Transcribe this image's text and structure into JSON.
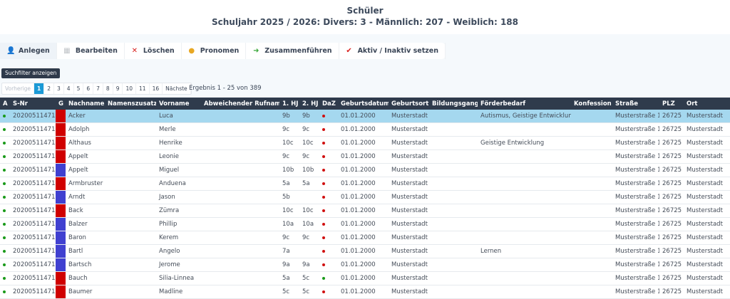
{
  "header": {
    "title": "Schüler",
    "subtitle": "Schuljahr 2025 / 2026: Divers: 3 - Männlich: 207 - Weiblich: 188"
  },
  "toolbar": [
    {
      "label": "Anlegen",
      "icon": "user-add-icon",
      "glyph": "👤",
      "color": "#3a5bd0"
    },
    {
      "label": "Bearbeiten",
      "icon": "edit-icon",
      "glyph": "▦",
      "color": "#c0c4c8"
    },
    {
      "label": "Löschen",
      "icon": "delete-x-icon",
      "glyph": "✕",
      "color": "#d9211e"
    },
    {
      "label": "Pronomen",
      "icon": "pronoun-icon",
      "glyph": "●",
      "color": "#e8a824"
    },
    {
      "label": "Zusammenführen",
      "icon": "merge-arrow-icon",
      "glyph": "➜",
      "color": "#3aa83a"
    },
    {
      "label": "Aktiv / Inaktiv setzen",
      "icon": "checkmark-icon",
      "glyph": "✔",
      "color": "#d9211e"
    }
  ],
  "search_filter_label": "Suchfilter anzeigen",
  "pagination": {
    "prev": "Vorherige",
    "pages": [
      "1",
      "2",
      "3",
      "4",
      "5",
      "6",
      "7",
      "8",
      "9",
      "10",
      "11",
      "16"
    ],
    "current": "1",
    "next": "Nächste",
    "result": "Ergebnis 1 - 25 von 389"
  },
  "colors": {
    "active": "#1a9a1a",
    "daz_no": "#d01010",
    "daz_yes": "#1a9a1a",
    "female": "#d00000",
    "male": "#4040d0",
    "selected": "#a5d8ef"
  },
  "table": {
    "columns": [
      "A",
      "S-Nr",
      "G",
      "Nachname",
      "Namenszusatz",
      "Vorname",
      "Abweichender Rufname",
      "1. HJ",
      "2. HJ",
      "DaZ",
      "Geburtsdatum",
      "Geburtsort",
      "Bildungsgang",
      "Förderbedarf",
      "Konfession",
      "Straße",
      "PLZ",
      "Ort"
    ],
    "rows": [
      {
        "snr": "202005114711",
        "g": "f",
        "nachname": "Acker",
        "zusatz": "",
        "vorname": "Luca",
        "ruf": "",
        "hj1": "9b",
        "hj2": "9b",
        "daz": false,
        "geb": "01.01.2000",
        "ort_geb": "Musterstadt",
        "bild": "",
        "foerder": "Autismus, Geistige Entwicklung",
        "konf": "",
        "strasse": "Musterstraße 1",
        "plz": "26725",
        "ort": "Musterstadt",
        "selected": true
      },
      {
        "snr": "202005114711",
        "g": "f",
        "nachname": "Adolph",
        "zusatz": "",
        "vorname": "Merle",
        "ruf": "",
        "hj1": "9c",
        "hj2": "9c",
        "daz": false,
        "geb": "01.01.2000",
        "ort_geb": "Musterstadt",
        "bild": "",
        "foerder": "",
        "konf": "",
        "strasse": "Musterstraße 1",
        "plz": "26725",
        "ort": "Musterstadt"
      },
      {
        "snr": "202005114711",
        "g": "f",
        "nachname": "Althaus",
        "zusatz": "",
        "vorname": "Henrike",
        "ruf": "",
        "hj1": "10c",
        "hj2": "10c",
        "daz": false,
        "geb": "01.01.2000",
        "ort_geb": "Musterstadt",
        "bild": "",
        "foerder": "Geistige Entwicklung",
        "konf": "",
        "strasse": "Musterstraße 1",
        "plz": "26725",
        "ort": "Musterstadt"
      },
      {
        "snr": "202005114711",
        "g": "f",
        "nachname": "Appelt",
        "zusatz": "",
        "vorname": "Leonie",
        "ruf": "",
        "hj1": "9c",
        "hj2": "9c",
        "daz": false,
        "geb": "01.01.2000",
        "ort_geb": "Musterstadt",
        "bild": "",
        "foerder": "",
        "konf": "",
        "strasse": "Musterstraße 1",
        "plz": "26725",
        "ort": "Musterstadt"
      },
      {
        "snr": "202005114711",
        "g": "m",
        "nachname": "Appelt",
        "zusatz": "",
        "vorname": "Miguel",
        "ruf": "",
        "hj1": "10b",
        "hj2": "10b",
        "daz": false,
        "geb": "01.01.2000",
        "ort_geb": "Musterstadt",
        "bild": "",
        "foerder": "",
        "konf": "",
        "strasse": "Musterstraße 1",
        "plz": "26725",
        "ort": "Musterstadt"
      },
      {
        "snr": "202005114711",
        "g": "f",
        "nachname": "Armbruster",
        "zusatz": "",
        "vorname": "Anduena",
        "ruf": "",
        "hj1": "5a",
        "hj2": "5a",
        "daz": false,
        "geb": "01.01.2000",
        "ort_geb": "Musterstadt",
        "bild": "",
        "foerder": "",
        "konf": "",
        "strasse": "Musterstraße 1",
        "plz": "26725",
        "ort": "Musterstadt"
      },
      {
        "snr": "202005114711",
        "g": "m",
        "nachname": "Arndt",
        "zusatz": "",
        "vorname": "Jason",
        "ruf": "",
        "hj1": "5b",
        "hj2": "",
        "daz": false,
        "geb": "01.01.2000",
        "ort_geb": "Musterstadt",
        "bild": "",
        "foerder": "",
        "konf": "",
        "strasse": "Musterstraße 1",
        "plz": "26725",
        "ort": "Musterstadt"
      },
      {
        "snr": "202005114711",
        "g": "f",
        "nachname": "Back",
        "zusatz": "",
        "vorname": "Zümra",
        "ruf": "",
        "hj1": "10c",
        "hj2": "10c",
        "daz": false,
        "geb": "01.01.2000",
        "ort_geb": "Musterstadt",
        "bild": "",
        "foerder": "",
        "konf": "",
        "strasse": "Musterstraße 1",
        "plz": "26725",
        "ort": "Musterstadt"
      },
      {
        "snr": "202005114711",
        "g": "m",
        "nachname": "Balzer",
        "zusatz": "",
        "vorname": "Phillip",
        "ruf": "",
        "hj1": "10a",
        "hj2": "10a",
        "daz": false,
        "geb": "01.01.2000",
        "ort_geb": "Musterstadt",
        "bild": "",
        "foerder": "",
        "konf": "",
        "strasse": "Musterstraße 1",
        "plz": "26725",
        "ort": "Musterstadt"
      },
      {
        "snr": "202005114711",
        "g": "m",
        "nachname": "Baron",
        "zusatz": "",
        "vorname": "Kerem",
        "ruf": "",
        "hj1": "9c",
        "hj2": "9c",
        "daz": false,
        "geb": "01.01.2000",
        "ort_geb": "Musterstadt",
        "bild": "",
        "foerder": "",
        "konf": "",
        "strasse": "Musterstraße 1",
        "plz": "26725",
        "ort": "Musterstadt"
      },
      {
        "snr": "202005114711",
        "g": "m",
        "nachname": "Bartl",
        "zusatz": "",
        "vorname": "Angelo",
        "ruf": "",
        "hj1": "7a",
        "hj2": "",
        "daz": false,
        "geb": "01.01.2000",
        "ort_geb": "Musterstadt",
        "bild": "",
        "foerder": "Lernen",
        "konf": "",
        "strasse": "Musterstraße 1",
        "plz": "26725",
        "ort": "Musterstadt"
      },
      {
        "snr": "202005114711",
        "g": "m",
        "nachname": "Bartsch",
        "zusatz": "",
        "vorname": "Jerome",
        "ruf": "",
        "hj1": "9a",
        "hj2": "9a",
        "daz": false,
        "geb": "01.01.2000",
        "ort_geb": "Musterstadt",
        "bild": "",
        "foerder": "",
        "konf": "",
        "strasse": "Musterstraße 1",
        "plz": "26725",
        "ort": "Musterstadt"
      },
      {
        "snr": "202005114711",
        "g": "f",
        "nachname": "Bauch",
        "zusatz": "",
        "vorname": "Silia-Linnea",
        "ruf": "",
        "hj1": "5a",
        "hj2": "5c",
        "daz": true,
        "geb": "01.01.2000",
        "ort_geb": "Musterstadt",
        "bild": "",
        "foerder": "",
        "konf": "",
        "strasse": "Musterstraße 1",
        "plz": "26725",
        "ort": "Musterstadt"
      },
      {
        "snr": "202005114711",
        "g": "f",
        "nachname": "Baumer",
        "zusatz": "",
        "vorname": "Madline",
        "ruf": "",
        "hj1": "5c",
        "hj2": "5c",
        "daz": false,
        "geb": "01.01.2000",
        "ort_geb": "Musterstadt",
        "bild": "",
        "foerder": "",
        "konf": "",
        "strasse": "Musterstraße 1",
        "plz": "26725",
        "ort": "Musterstadt"
      }
    ]
  }
}
